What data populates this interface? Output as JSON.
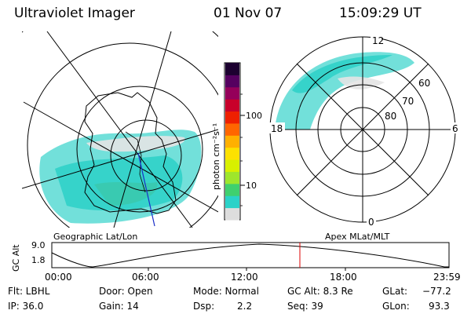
{
  "header": {
    "instrument": "Ultraviolet Imager",
    "date": "01 Nov 07",
    "time": "15:09:29 UT"
  },
  "colorbar": {
    "unit_label": "photon cm⁻²s⁻¹",
    "ticks": [
      "100",
      "10"
    ],
    "colors": [
      "#dddddd",
      "#2ad2c8",
      "#3fd06e",
      "#9ee62c",
      "#d8f000",
      "#fde100",
      "#ffb000",
      "#ff6600",
      "#ee2000",
      "#c8002a",
      "#95005a",
      "#550060",
      "#1c0030"
    ]
  },
  "geo_map": {
    "label": "Geographic Lat/Lon"
  },
  "apex_map": {
    "label": "Apex MLat/MLT",
    "mlt_labels": {
      "top": "12",
      "left": "18",
      "right": "6",
      "bottom": "0"
    },
    "lat_labels": [
      "60",
      "70",
      "80"
    ]
  },
  "timeline": {
    "ylabel": "GC Alt",
    "y_ticks": [
      "9.0",
      "1.8"
    ],
    "x_ticks": [
      "00:00",
      "06:00",
      "12:00",
      "18:00",
      "23:59"
    ],
    "marker_color": "#dd0000"
  },
  "status": {
    "filter": "Flt: LBHL",
    "ip": "IP: 36.0",
    "door": "Door: Open",
    "gain": "Gain: 14",
    "mode": "Mode: Normal",
    "dsp_label": "Dsp:",
    "dsp_value": "2.2",
    "gc_alt": "GC Alt: 8.3 Re",
    "seq": "Seq: 39",
    "glat_label": "GLat:",
    "glat_value": "−77.2",
    "glon_label": "GLon:",
    "glon_value": "93.3"
  }
}
